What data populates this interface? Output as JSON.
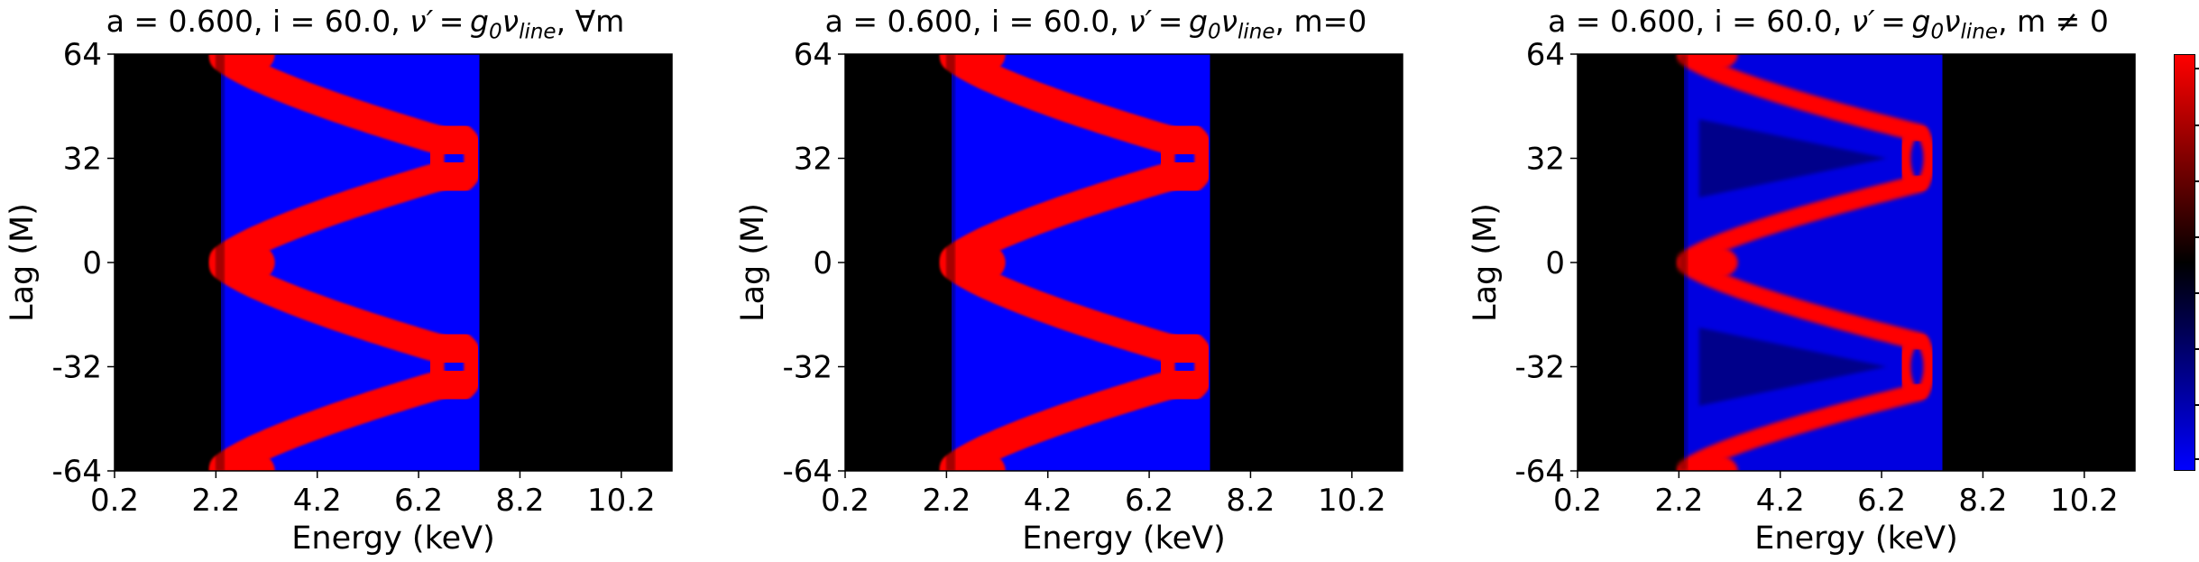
{
  "colors": {
    "positive": "#ff0000",
    "negative": "#0000ff",
    "zero": "#000000"
  },
  "chart_data": [
    {
      "type": "heatmap",
      "title": {
        "prefix": "a = 0.600, i = 60.0, ",
        "suffix": ", ∀m"
      },
      "xlabel": "Energy (keV)",
      "ylabel": "Lag (M)",
      "xlim": [
        0.2,
        11.2
      ],
      "ylim": [
        -64,
        64
      ],
      "xticks": [
        "0.2",
        "2.2",
        "4.2",
        "6.2",
        "8.2",
        "10.2"
      ],
      "yticks": [
        "64",
        "32",
        "0",
        "-32",
        "-64"
      ],
      "mode": "all"
    },
    {
      "type": "heatmap",
      "title": {
        "prefix": "a = 0.600, i = 60.0, ",
        "suffix": ", m=0"
      },
      "xlabel": "Energy (keV)",
      "ylabel": "Lag (M)",
      "xlim": [
        0.2,
        11.2
      ],
      "ylim": [
        -64,
        64
      ],
      "xticks": [
        "0.2",
        "2.2",
        "4.2",
        "6.2",
        "8.2",
        "10.2"
      ],
      "yticks": [
        "64",
        "32",
        "0",
        "-32",
        "-64"
      ],
      "mode": "m0"
    },
    {
      "type": "heatmap",
      "title": {
        "prefix": "a = 0.600, i = 60.0, ",
        "suffix": ", m ≠ 0"
      },
      "xlabel": "Energy (keV)",
      "ylabel": "Lag (M)",
      "xlim": [
        0.2,
        11.2
      ],
      "ylim": [
        -64,
        64
      ],
      "xticks": [
        "0.2",
        "2.2",
        "4.2",
        "6.2",
        "8.2",
        "10.2"
      ],
      "yticks": [
        "64",
        "32",
        "0",
        "-32",
        "-64"
      ],
      "mode": "mn0"
    }
  ]
}
